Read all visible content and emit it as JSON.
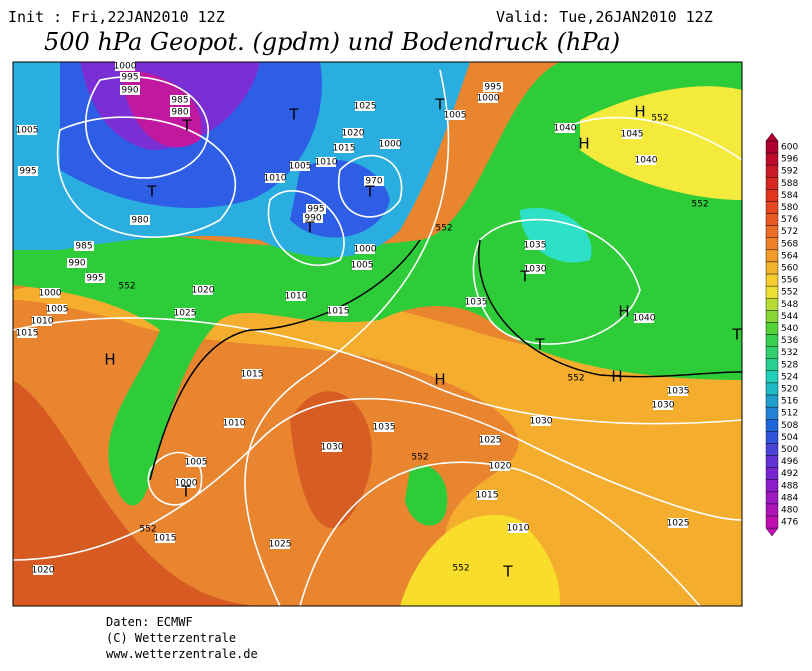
{
  "header": {
    "init": "Init : Fri,22JAN2010 12Z",
    "valid": "Valid: Tue,26JAN2010 12Z",
    "title": "500 hPa Geopot. (gpdm) und Bodendruck (hPa)"
  },
  "colorbar": {
    "labels": [
      600,
      596,
      592,
      588,
      584,
      580,
      576,
      572,
      568,
      564,
      560,
      556,
      552,
      548,
      544,
      540,
      536,
      532,
      528,
      524,
      520,
      516,
      512,
      508,
      504,
      500,
      496,
      492,
      488,
      484,
      480,
      476
    ]
  },
  "map_labels": [
    "1000",
    "995",
    "990",
    "985",
    "980",
    "T",
    "1005",
    "995",
    "T",
    "980",
    "985",
    "990",
    "995",
    "1000",
    "1005",
    "1010",
    "1015",
    "1020",
    "1025",
    "H",
    "1015",
    "1010",
    "1005",
    "1000",
    "T",
    "1015",
    "1020",
    "1025",
    "1030",
    "1035",
    "H",
    "1025",
    "1020",
    "1015",
    "1010",
    "1025",
    "T",
    "T",
    "1025",
    "1020",
    "1015",
    "1010",
    "1000",
    "970",
    "T",
    "1005",
    "1010",
    "995",
    "990",
    "T",
    "1000",
    "1005",
    "1010",
    "1015",
    "T",
    "1005",
    "995",
    "1000",
    "1040",
    "H",
    "H",
    "1045",
    "1040",
    "1035",
    "1030",
    "T",
    "1035",
    "1040",
    "H",
    "T",
    "H",
    "1035",
    "1030",
    "1030",
    "552",
    "552",
    "552",
    "552",
    "552",
    "552",
    "552",
    "552",
    "T"
  ],
  "footer": {
    "source": "Daten: ECMWF",
    "copyright": "(C) Wetterzentrale",
    "url": "www.wetterzentrale.de"
  }
}
